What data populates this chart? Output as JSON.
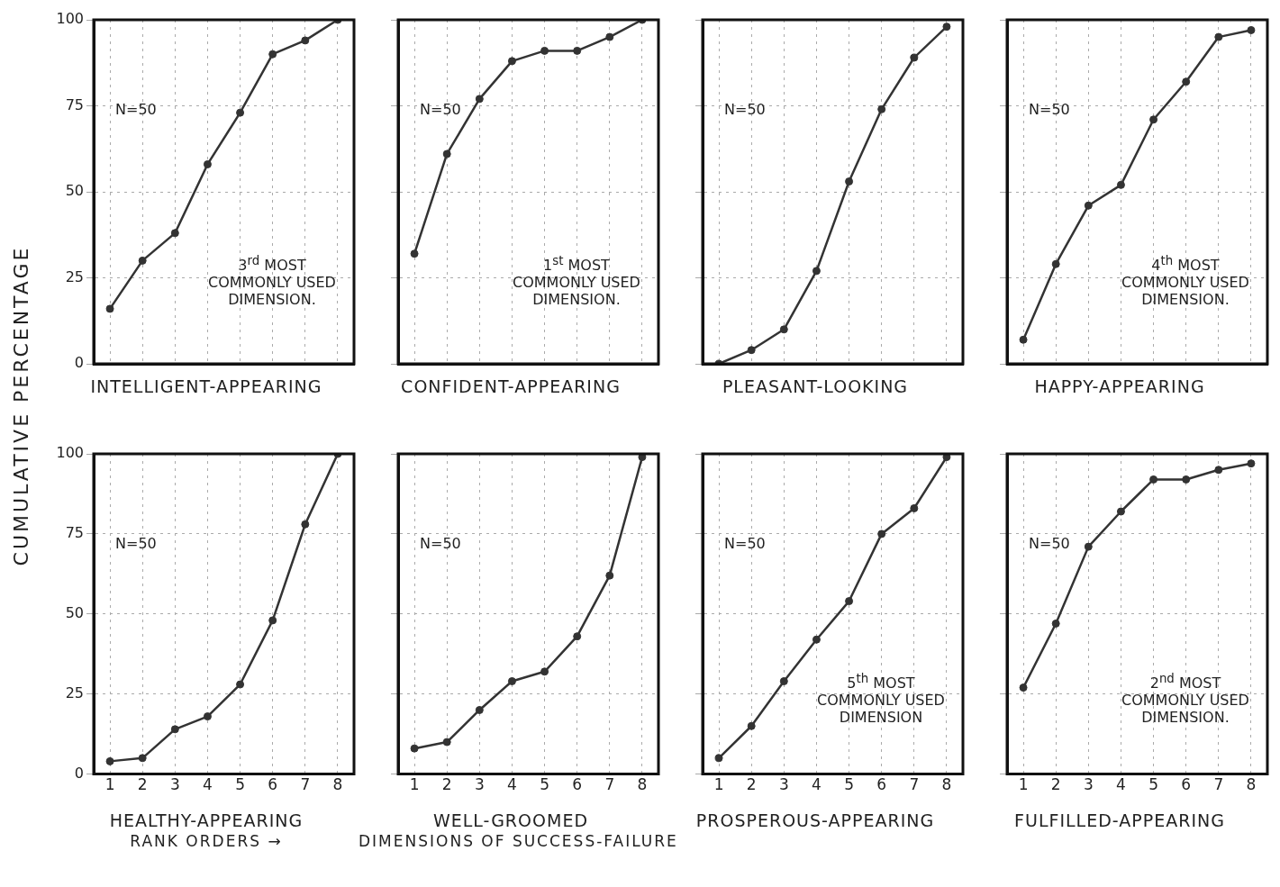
{
  "chart_data": [
    {
      "type": "line",
      "xlabel": "INTELLIGENT-APPEARING",
      "ylabel": "CUMULATIVE PERCENTAGE",
      "categories": [
        "1",
        "2",
        "3",
        "4",
        "5",
        "6",
        "7",
        "8"
      ],
      "values": [
        16,
        30,
        38,
        58,
        73,
        90,
        94,
        100
      ],
      "color": "#333333",
      "ylim": [
        0,
        100
      ],
      "yticks": [
        0,
        25,
        50,
        75,
        100
      ],
      "grid": true,
      "marker": "circle",
      "tick_labels": "y",
      "annotations": [
        "N=50",
        "3$^{rd}$ MOST COMMONLY USED DIMENSION."
      ]
    },
    {
      "type": "line",
      "xlabel": "CONFIDENT-APPEARING",
      "categories": [
        "1",
        "2",
        "3",
        "4",
        "5",
        "6",
        "7",
        "8"
      ],
      "values": [
        32,
        61,
        77,
        88,
        91,
        91,
        95,
        100
      ],
      "color": "#333333",
      "ylim": [
        0,
        100
      ],
      "yticks": [
        0,
        25,
        50,
        75,
        100
      ],
      "grid": true,
      "marker": "circle",
      "tick_labels": false,
      "annotations": [
        "N=50",
        "1$^{st}$ MOST COMMONLY USED DIMENSION."
      ]
    },
    {
      "type": "line",
      "xlabel": "PLEASANT-LOOKING",
      "categories": [
        "1",
        "2",
        "3",
        "4",
        "5",
        "6",
        "7",
        "8"
      ],
      "values": [
        0,
        4,
        10,
        27,
        53,
        74,
        89,
        98
      ],
      "color": "#333333",
      "ylim": [
        0,
        100
      ],
      "yticks": [
        0,
        25,
        50,
        75,
        100
      ],
      "grid": true,
      "marker": "circle",
      "tick_labels": false,
      "annotations": [
        "N=50"
      ]
    },
    {
      "type": "line",
      "xlabel": "HAPPY-APPEARING",
      "categories": [
        "1",
        "2",
        "3",
        "4",
        "5",
        "6",
        "7",
        "8"
      ],
      "values": [
        7,
        29,
        46,
        52,
        71,
        82,
        95,
        97
      ],
      "color": "#333333",
      "ylim": [
        0,
        100
      ],
      "yticks": [
        0,
        25,
        50,
        75,
        100
      ],
      "grid": true,
      "marker": "circle",
      "tick_labels": false,
      "annotations": [
        "N=50",
        "4$^{th}$ MOST COMMONLY USED DIMENSION."
      ]
    },
    {
      "type": "line",
      "xlabel": "HEALTHY-APPEARING",
      "subtitle": "RANK ORDERS →",
      "categories": [
        "1",
        "2",
        "3",
        "4",
        "5",
        "6",
        "7",
        "8"
      ],
      "values": [
        4,
        5,
        14,
        18,
        28,
        48,
        78,
        100
      ],
      "color": "#333333",
      "ylim": [
        0,
        100
      ],
      "yticks": [
        0,
        25,
        50,
        75,
        100
      ],
      "grid": true,
      "marker": "circle",
      "annotations": [
        "N=50"
      ]
    },
    {
      "type": "line",
      "xlabel": "WELL-GROOMED",
      "subtitle": "DIMENSIONS OF SUCCESS-FAILURE",
      "categories": [
        "1",
        "2",
        "3",
        "4",
        "5",
        "6",
        "7",
        "8"
      ],
      "values": [
        8,
        10,
        20,
        29,
        32,
        43,
        62,
        99
      ],
      "color": "#333333",
      "ylim": [
        0,
        100
      ],
      "yticks": [
        0,
        25,
        50,
        75,
        100
      ],
      "grid": true,
      "marker": "circle",
      "tick_labels": "x",
      "annotations": [
        "N=50"
      ]
    },
    {
      "type": "line",
      "xlabel": "PROSPEROUS-APPEARING",
      "categories": [
        "1",
        "2",
        "3",
        "4",
        "5",
        "6",
        "7",
        "8"
      ],
      "values": [
        5,
        15,
        29,
        42,
        54,
        75,
        83,
        99
      ],
      "color": "#333333",
      "ylim": [
        0,
        100
      ],
      "yticks": [
        0,
        25,
        50,
        75,
        100
      ],
      "grid": true,
      "marker": "circle",
      "tick_labels": "x",
      "annotations": [
        "N=50",
        "5$^{th}$ MOST COMMONLY USED DIMENSION"
      ]
    },
    {
      "type": "line",
      "xlabel": "FULFILLED-APPEARING",
      "categories": [
        "1",
        "2",
        "3",
        "4",
        "5",
        "6",
        "7",
        "8"
      ],
      "values": [
        27,
        47,
        71,
        82,
        92,
        92,
        95,
        97
      ],
      "color": "#333333",
      "ylim": [
        0,
        100
      ],
      "yticks": [
        0,
        25,
        50,
        75,
        100
      ],
      "grid": true,
      "marker": "circle",
      "tick_labels": "x",
      "annotations": [
        "N=50",
        "2$^{nd}$ MOST COMMONLY USED DIMENSION."
      ]
    }
  ]
}
